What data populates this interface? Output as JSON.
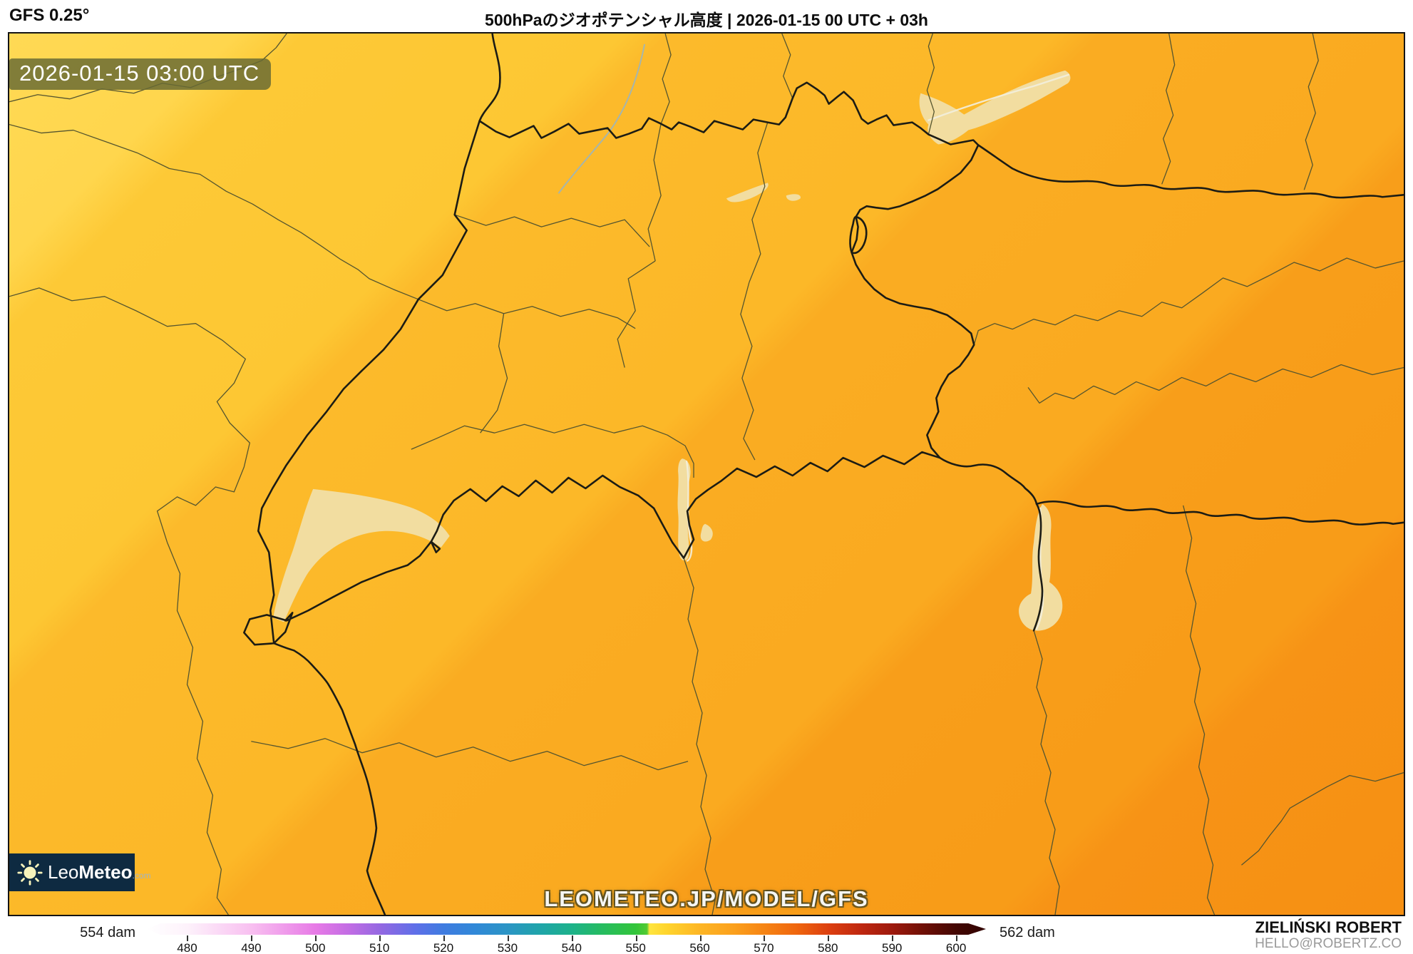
{
  "header": {
    "model_label": "GFS 0.25°",
    "title": "500hPaのジオポテンシャル高度 | 2026-01-15 00 UTC + 03h"
  },
  "map": {
    "timestamp_badge": "2026-01-15 03:00 UTC",
    "watermark": "LEOMETEO.JP/MODEL/GFS",
    "logo": {
      "leo": "Leo",
      "meteo": "Meteo",
      "tld": ".com"
    },
    "band_colors": [
      {
        "c": "#ffd954",
        "p": 0
      },
      {
        "c": "#ffd64d",
        "p": 10
      },
      {
        "c": "#fdc936",
        "p": 13
      },
      {
        "c": "#fdc733",
        "p": 27
      },
      {
        "c": "#fcba2b",
        "p": 29
      },
      {
        "c": "#fcb828",
        "p": 46
      },
      {
        "c": "#faac22",
        "p": 48
      },
      {
        "c": "#faaa20",
        "p": 65
      },
      {
        "c": "#f89e1a",
        "p": 67
      },
      {
        "c": "#f89c18",
        "p": 82
      },
      {
        "c": "#f79316",
        "p": 84
      },
      {
        "c": "#f69013",
        "p": 100
      }
    ]
  },
  "colorbar": {
    "min_label": "554 dam",
    "max_label": "562 dam",
    "unit": "dam",
    "ticks": [
      480,
      490,
      500,
      510,
      520,
      530,
      540,
      550,
      560,
      570,
      580,
      590,
      600
    ],
    "scale": {
      "min_value": 480,
      "max_value": 600,
      "min_pct": 4.8,
      "max_pct": 96.44
    },
    "gradient_stops": [
      {
        "c": "#ffffff",
        "p": 0
      },
      {
        "c": "#fdf2fb",
        "p": 4.8
      },
      {
        "c": "#f8bff0",
        "p": 12.5
      },
      {
        "c": "#e77ae6",
        "p": 20.1
      },
      {
        "c": "#c36de4",
        "p": 24
      },
      {
        "c": "#9468e2",
        "p": 27.8
      },
      {
        "c": "#5f6fe8",
        "p": 32
      },
      {
        "c": "#3f7ce0",
        "p": 35.4
      },
      {
        "c": "#3188d8",
        "p": 39
      },
      {
        "c": "#2b95c4",
        "p": 43.1
      },
      {
        "c": "#1fa5a8",
        "p": 47
      },
      {
        "c": "#1db289",
        "p": 50.7
      },
      {
        "c": "#25bb63",
        "p": 54
      },
      {
        "c": "#33c53a",
        "p": 58.3
      },
      {
        "c": "#52ca31",
        "p": 59.6
      },
      {
        "c": "#ffe53e",
        "p": 59.9
      },
      {
        "c": "#ffd42d",
        "p": 62
      },
      {
        "c": "#fdb525",
        "p": 66
      },
      {
        "c": "#fba01d",
        "p": 70
      },
      {
        "c": "#f68414",
        "p": 73.6
      },
      {
        "c": "#ef650e",
        "p": 77.5
      },
      {
        "c": "#dc3f10",
        "p": 81.3
      },
      {
        "c": "#c02810",
        "p": 85
      },
      {
        "c": "#9d190d",
        "p": 88.9
      },
      {
        "c": "#701006",
        "p": 92.5
      },
      {
        "c": "#440703",
        "p": 96.4
      },
      {
        "c": "#300301",
        "p": 100
      }
    ]
  },
  "credit": {
    "name": "ZIELIŃSKI ROBERT",
    "email": "HELLO@ROBERTZ.CO"
  },
  "colors": {
    "accent_badge": "#686a34",
    "logo_bg": "#0e2a41",
    "lake": "#f2dda0",
    "border_national": "#1c1c14",
    "border_region": "#55552f"
  }
}
